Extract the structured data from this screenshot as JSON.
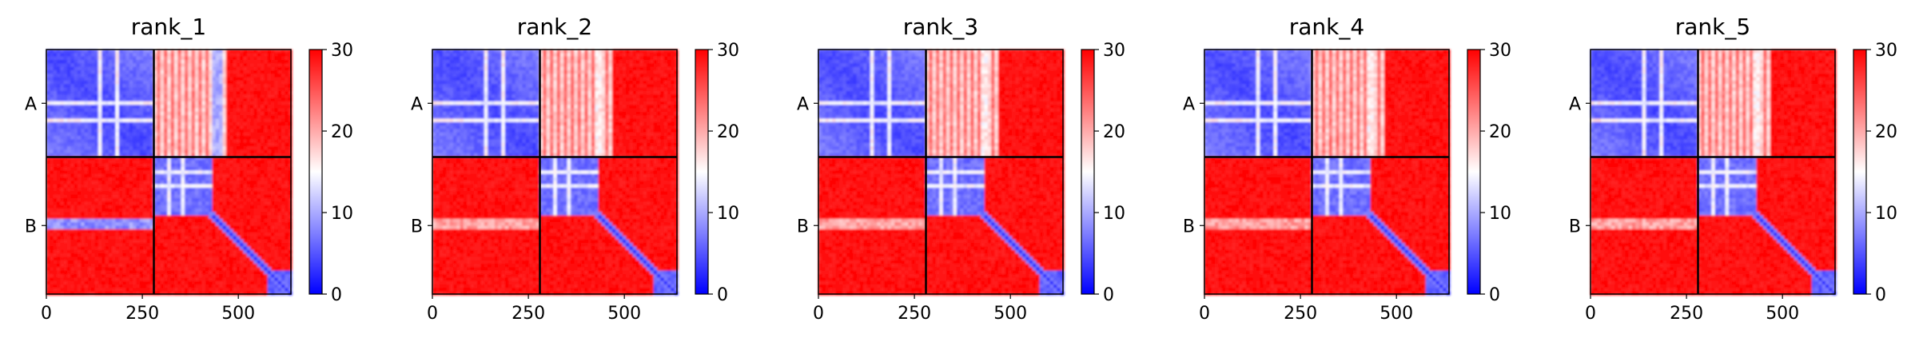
{
  "chart_data": [
    {
      "type": "heatmap",
      "title": "rank_1",
      "chains": [
        "A",
        "B"
      ],
      "xticks": [
        0,
        250,
        500
      ],
      "xlim": [
        0,
        637
      ],
      "chain_boundary": 280,
      "colorbar": {
        "min": 0,
        "max": 30,
        "ticks": [
          0,
          10,
          20,
          30
        ]
      },
      "colors": {
        "low": "#0000ff",
        "mid": "#ffffff",
        "high": "#ff0000"
      }
    },
    {
      "type": "heatmap",
      "title": "rank_2",
      "chains": [
        "A",
        "B"
      ],
      "xticks": [
        0,
        250,
        500
      ],
      "xlim": [
        0,
        637
      ],
      "chain_boundary": 280,
      "colorbar": {
        "min": 0,
        "max": 30,
        "ticks": [
          0,
          10,
          20,
          30
        ]
      },
      "colors": {
        "low": "#0000ff",
        "mid": "#ffffff",
        "high": "#ff0000"
      }
    },
    {
      "type": "heatmap",
      "title": "rank_3",
      "chains": [
        "A",
        "B"
      ],
      "xticks": [
        0,
        250,
        500
      ],
      "xlim": [
        0,
        637
      ],
      "chain_boundary": 280,
      "colorbar": {
        "min": 0,
        "max": 30,
        "ticks": [
          0,
          10,
          20,
          30
        ]
      },
      "colors": {
        "low": "#0000ff",
        "mid": "#ffffff",
        "high": "#ff0000"
      }
    },
    {
      "type": "heatmap",
      "title": "rank_4",
      "chains": [
        "A",
        "B"
      ],
      "xticks": [
        0,
        250,
        500
      ],
      "xlim": [
        0,
        637
      ],
      "chain_boundary": 280,
      "colorbar": {
        "min": 0,
        "max": 30,
        "ticks": [
          0,
          10,
          20,
          30
        ]
      },
      "colors": {
        "low": "#0000ff",
        "mid": "#ffffff",
        "high": "#ff0000"
      }
    },
    {
      "type": "heatmap",
      "title": "rank_5",
      "chains": [
        "A",
        "B"
      ],
      "xticks": [
        0,
        250,
        500
      ],
      "xlim": [
        0,
        637
      ],
      "chain_boundary": 280,
      "colorbar": {
        "min": 0,
        "max": 30,
        "ticks": [
          0,
          10,
          20,
          30
        ]
      },
      "colors": {
        "low": "#0000ff",
        "mid": "#ffffff",
        "high": "#ff0000"
      }
    }
  ]
}
